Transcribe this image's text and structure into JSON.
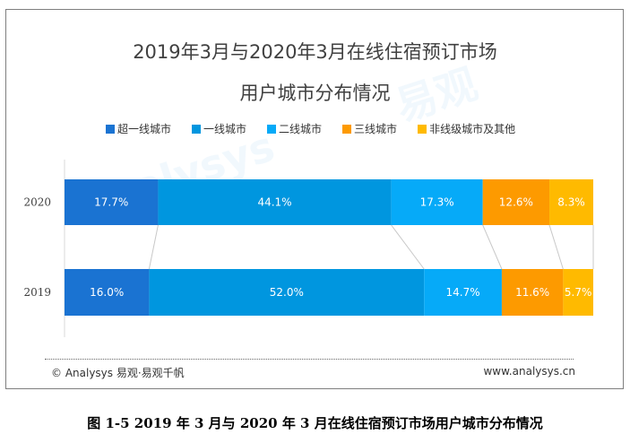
{
  "chart_data": {
    "type": "bar",
    "orientation": "horizontal",
    "stacked": true,
    "title": "2019年3月与2020年3月在线住宿预订市场",
    "subtitle": "用户城市分布情况",
    "categories": [
      "2020",
      "2019"
    ],
    "series": [
      {
        "name": "超一线城市",
        "color": "#1a73d2",
        "values": [
          17.7,
          16.0
        ],
        "labels": [
          "17.7%",
          "16.0%"
        ]
      },
      {
        "name": "一线城市",
        "color": "#0096df",
        "values": [
          44.1,
          52.0
        ],
        "labels": [
          "44.1%",
          "52.0%"
        ]
      },
      {
        "name": "二线城市",
        "color": "#06aaf8",
        "values": [
          17.3,
          14.7
        ],
        "labels": [
          "17.3%",
          "14.7%"
        ]
      },
      {
        "name": "三线城市",
        "color": "#fd9a00",
        "values": [
          12.6,
          11.6
        ],
        "labels": [
          "12.6%",
          "11.6%"
        ]
      },
      {
        "name": "非线级城市及其他",
        "color": "#ffba00",
        "values": [
          8.3,
          5.7
        ],
        "labels": [
          "8.3%",
          "5.7%"
        ]
      }
    ],
    "xlim": [
      0,
      100
    ],
    "legend": "top",
    "grid": false
  },
  "footer": {
    "source": "© Analysys 易观·易观千帆",
    "website": "www.analysys.cn"
  },
  "caption": "图 1-5 2019 年 3 月与 2020 年 3 月在线住宿预订市场用户城市分布情况",
  "watermark": "Analysys 易观 你要的数据分析能力"
}
